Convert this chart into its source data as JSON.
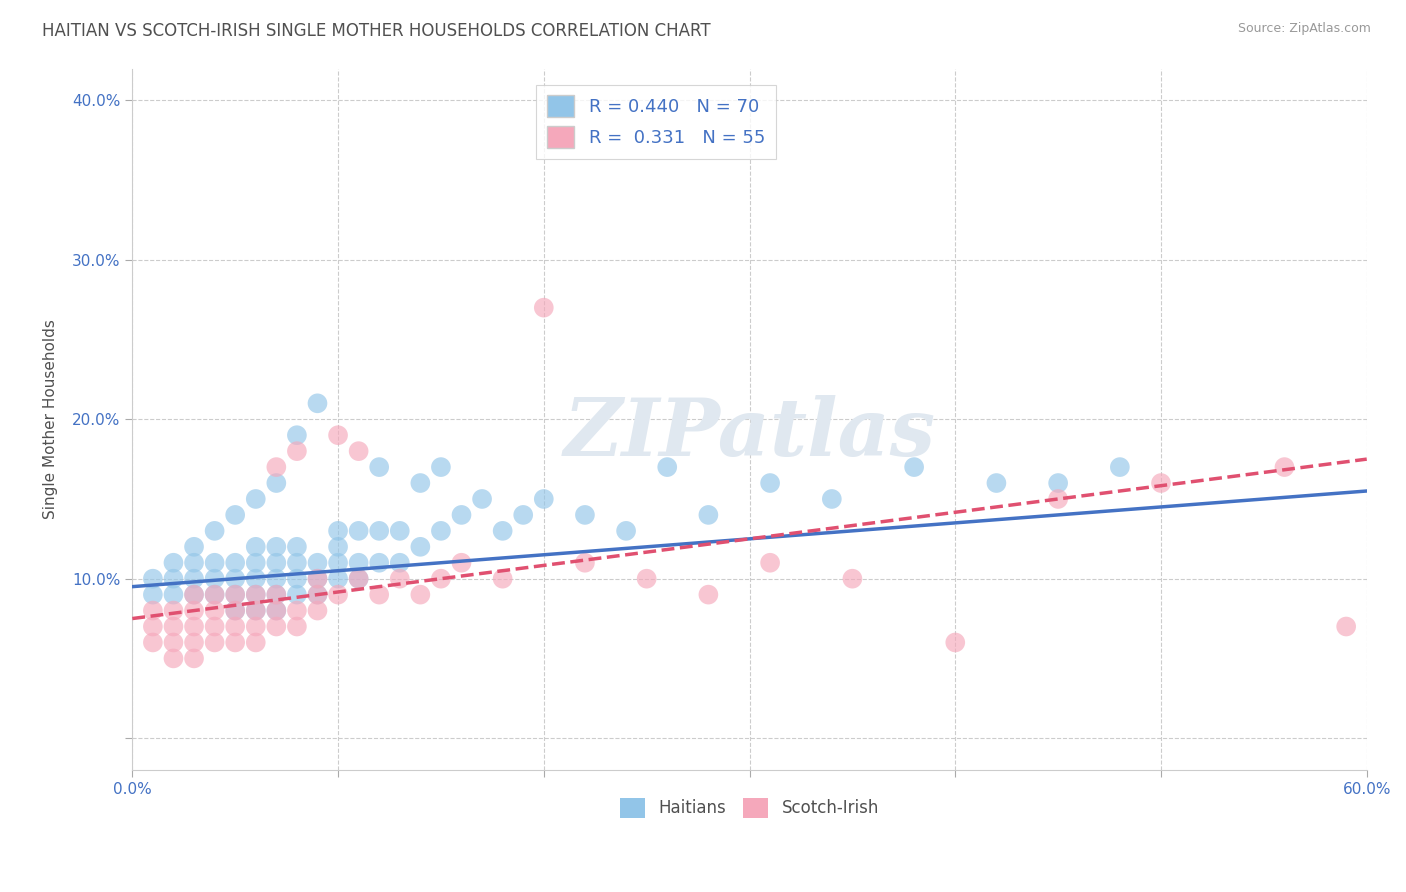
{
  "title": "HAITIAN VS SCOTCH-IRISH SINGLE MOTHER HOUSEHOLDS CORRELATION CHART",
  "source": "Source: ZipAtlas.com",
  "ylabel": "Single Mother Households",
  "ytick_vals": [
    0.0,
    0.1,
    0.2,
    0.3,
    0.4
  ],
  "xlim": [
    0.0,
    0.6
  ],
  "ylim": [
    -0.02,
    0.42
  ],
  "haitian_color": "#92C5E8",
  "scotch_color": "#F5A8BB",
  "haitian_line_color": "#4472C4",
  "scotch_line_color": "#E05070",
  "haitian_R": 0.44,
  "haitian_N": 70,
  "scotch_R": 0.331,
  "scotch_N": 55,
  "grid_color": "#CCCCCC",
  "background_color": "#FFFFFF",
  "watermark": "ZIPatlas",
  "watermark_color": "#E0E8F0",
  "title_color": "#505050",
  "label_color": "#4472C4",
  "haitian_x": [
    0.01,
    0.01,
    0.02,
    0.02,
    0.02,
    0.03,
    0.03,
    0.03,
    0.03,
    0.04,
    0.04,
    0.04,
    0.04,
    0.05,
    0.05,
    0.05,
    0.05,
    0.05,
    0.06,
    0.06,
    0.06,
    0.06,
    0.06,
    0.06,
    0.07,
    0.07,
    0.07,
    0.07,
    0.07,
    0.07,
    0.08,
    0.08,
    0.08,
    0.08,
    0.08,
    0.09,
    0.09,
    0.09,
    0.09,
    0.1,
    0.1,
    0.1,
    0.1,
    0.11,
    0.11,
    0.11,
    0.12,
    0.12,
    0.12,
    0.13,
    0.13,
    0.14,
    0.14,
    0.15,
    0.15,
    0.16,
    0.17,
    0.18,
    0.19,
    0.2,
    0.22,
    0.24,
    0.26,
    0.28,
    0.31,
    0.34,
    0.38,
    0.42,
    0.45,
    0.48
  ],
  "haitian_y": [
    0.09,
    0.1,
    0.09,
    0.1,
    0.11,
    0.09,
    0.1,
    0.11,
    0.12,
    0.09,
    0.1,
    0.11,
    0.13,
    0.08,
    0.09,
    0.1,
    0.11,
    0.14,
    0.08,
    0.09,
    0.1,
    0.11,
    0.12,
    0.15,
    0.08,
    0.09,
    0.1,
    0.11,
    0.12,
    0.16,
    0.09,
    0.1,
    0.11,
    0.12,
    0.19,
    0.09,
    0.1,
    0.11,
    0.21,
    0.1,
    0.11,
    0.12,
    0.13,
    0.1,
    0.11,
    0.13,
    0.11,
    0.13,
    0.17,
    0.11,
    0.13,
    0.12,
    0.16,
    0.13,
    0.17,
    0.14,
    0.15,
    0.13,
    0.14,
    0.15,
    0.14,
    0.13,
    0.17,
    0.14,
    0.16,
    0.15,
    0.17,
    0.16,
    0.16,
    0.17
  ],
  "scotch_x": [
    0.01,
    0.01,
    0.01,
    0.02,
    0.02,
    0.02,
    0.02,
    0.03,
    0.03,
    0.03,
    0.03,
    0.03,
    0.04,
    0.04,
    0.04,
    0.04,
    0.05,
    0.05,
    0.05,
    0.05,
    0.06,
    0.06,
    0.06,
    0.06,
    0.07,
    0.07,
    0.07,
    0.07,
    0.08,
    0.08,
    0.08,
    0.09,
    0.09,
    0.09,
    0.1,
    0.1,
    0.11,
    0.11,
    0.12,
    0.13,
    0.14,
    0.15,
    0.16,
    0.18,
    0.2,
    0.22,
    0.25,
    0.28,
    0.31,
    0.35,
    0.4,
    0.45,
    0.5,
    0.56,
    0.59
  ],
  "scotch_y": [
    0.06,
    0.07,
    0.08,
    0.05,
    0.06,
    0.07,
    0.08,
    0.05,
    0.06,
    0.07,
    0.08,
    0.09,
    0.06,
    0.07,
    0.08,
    0.09,
    0.06,
    0.07,
    0.08,
    0.09,
    0.06,
    0.07,
    0.08,
    0.09,
    0.07,
    0.08,
    0.09,
    0.17,
    0.07,
    0.08,
    0.18,
    0.08,
    0.09,
    0.1,
    0.09,
    0.19,
    0.1,
    0.18,
    0.09,
    0.1,
    0.09,
    0.1,
    0.11,
    0.1,
    0.27,
    0.11,
    0.1,
    0.09,
    0.11,
    0.1,
    0.06,
    0.15,
    0.16,
    0.17,
    0.07
  ],
  "haitian_trend": [
    0.0,
    0.6
  ],
  "haitian_trend_y": [
    0.095,
    0.155
  ],
  "scotch_trend": [
    0.0,
    0.6
  ],
  "scotch_trend_y": [
    0.075,
    0.175
  ]
}
